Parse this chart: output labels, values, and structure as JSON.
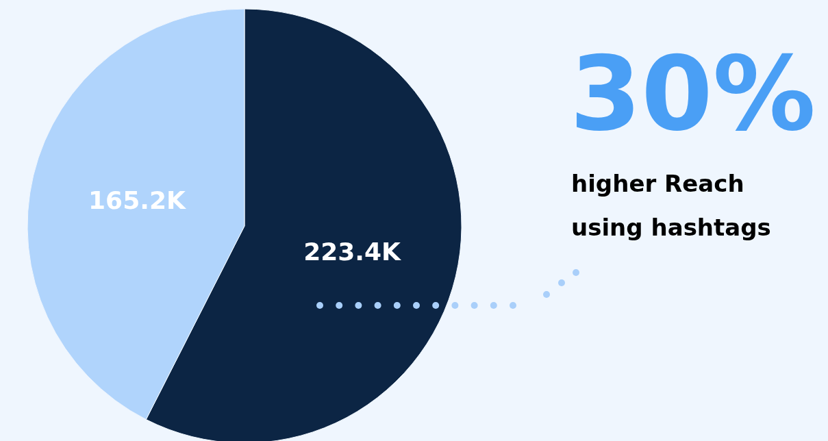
{
  "chart_data": {
    "type": "pie",
    "categories": [
      null,
      null
    ],
    "values": [
      223.4,
      165.2
    ],
    "colors": [
      "#0c2544",
      "#b0d4fc"
    ],
    "value_labels": [
      "223.4K",
      "165.2K"
    ],
    "annotations": [
      "30%",
      "higher Reach using hashtags"
    ]
  }
}
